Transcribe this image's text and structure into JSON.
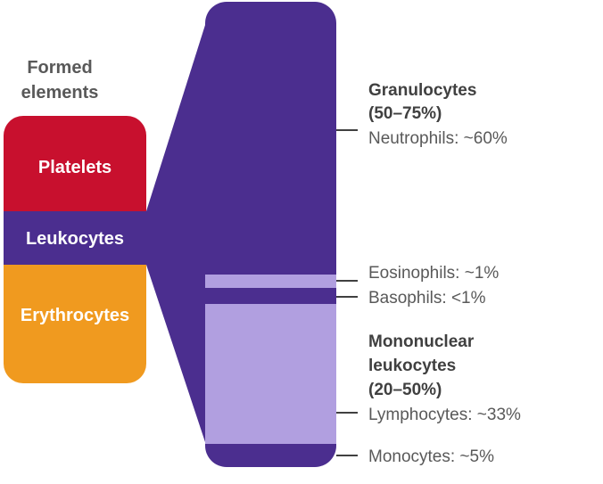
{
  "heading": {
    "line1": "Formed",
    "line2": "elements"
  },
  "formed_elements": [
    {
      "label": "Platelets",
      "color": "#c8102e"
    },
    {
      "label": "Leukocytes",
      "color": "#4b2e8f"
    },
    {
      "label": "Erythrocytes",
      "color": "#f09a1f"
    }
  ],
  "colors": {
    "dark_purple": "#4b2e8f",
    "light_purple": "#b19fe0",
    "connector": "#4b2e8f",
    "tick": "#000000"
  },
  "leukocyte_breakdown": {
    "granulocytes_group": {
      "title_line1": "Granulocytes",
      "title_line2": "(50–75%)"
    },
    "mononuclear_group": {
      "title_line1": "Mononuclear",
      "title_line2": "leukocytes",
      "title_line3": "(20–50%)"
    },
    "items": [
      {
        "label": "Neutrophils: ~60%",
        "color": "dark_purple"
      },
      {
        "label": "Eosinophils: ~1%",
        "color": "light_purple"
      },
      {
        "label": "Basophils: <1%",
        "color": "dark_purple"
      },
      {
        "label": "Lymphocytes: ~33%",
        "color": "light_purple"
      },
      {
        "label": "Monocytes: ~5%",
        "color": "dark_purple"
      }
    ]
  }
}
